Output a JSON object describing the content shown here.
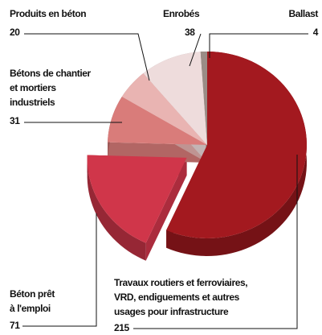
{
  "chart_data": {
    "type": "pie",
    "categories": [
      [
        "Travaux routiers et ferroviaires,",
        "VRD, endiguements et autres",
        "usages pour infrastructure"
      ],
      [
        "Béton prêt",
        "à l'emploi"
      ],
      [
        "Bétons de chantier",
        "et mortiers",
        "industriels"
      ],
      [
        "Produits en béton"
      ],
      [
        "Enrobés"
      ],
      [
        "Ballast"
      ]
    ],
    "values": [
      215,
      71,
      31,
      20,
      38,
      4
    ],
    "colors": [
      "#a3191f",
      "#d0364a",
      "#d97c7a",
      "#e9b4b2",
      "#eedcdc",
      "#9a8c86"
    ]
  }
}
